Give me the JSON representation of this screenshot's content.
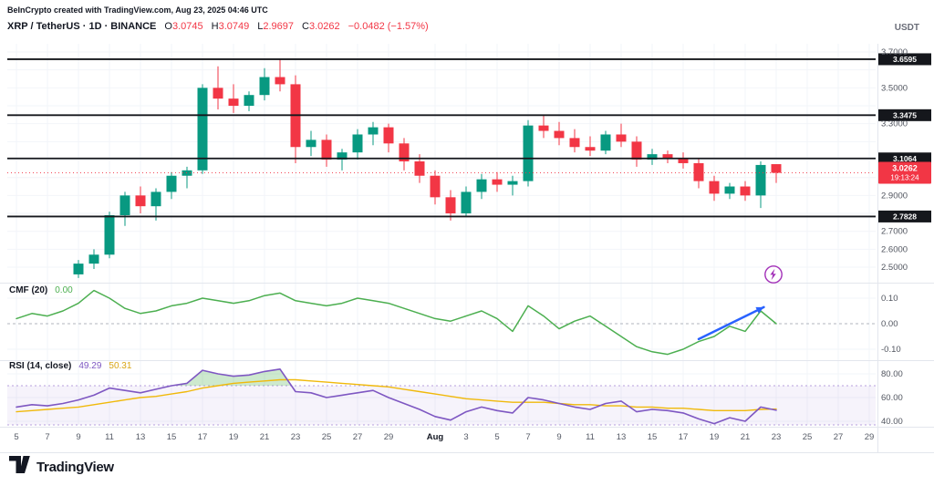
{
  "header": {
    "attribution": "BeInCrypto created with TradingView.com, Aug 23, 2025 04:46 UTC"
  },
  "legend": {
    "title": "XRP / TetherUS · 1D · BINANCE",
    "ohlc": [
      {
        "k": "O",
        "v": "3.0745"
      },
      {
        "k": "H",
        "v": "3.0749"
      },
      {
        "k": "L",
        "v": "2.9697"
      },
      {
        "k": "C",
        "v": "3.0262"
      }
    ],
    "change": "−0.0482 (−1.57%)",
    "quote_currency": "USDT"
  },
  "indicators": {
    "cmf": {
      "label": "CMF (20)",
      "value": "0.00"
    },
    "rsi": {
      "label": "RSI (14, close)",
      "value": "49.29",
      "ma_value": "50.31"
    }
  },
  "footer": {
    "logo_text": "TradingView"
  },
  "colors": {
    "up": "#089981",
    "down": "#F23645",
    "level_line": "#15171C",
    "last_price_badge": "#F23645",
    "arrow": "#2962FF",
    "boost": "#A22FB8"
  },
  "chart_data": [
    {
      "type": "candlestick",
      "title": "XRP / TetherUS · 1D · BINANCE",
      "interval": "1D",
      "exchange": "BINANCE",
      "ylim": [
        2.42,
        3.75
      ],
      "start_day": 4,
      "candles": [
        {
          "t": "Jul 9",
          "o": 2.46,
          "h": 2.54,
          "l": 2.44,
          "c": 2.52
        },
        {
          "t": "Jul 10",
          "o": 2.52,
          "h": 2.6,
          "l": 2.49,
          "c": 2.57
        },
        {
          "t": "Jul 11",
          "o": 2.57,
          "h": 2.81,
          "l": 2.55,
          "c": 2.79
        },
        {
          "t": "Jul 12",
          "o": 2.79,
          "h": 2.92,
          "l": 2.73,
          "c": 2.9
        },
        {
          "t": "Jul 13",
          "o": 2.9,
          "h": 2.95,
          "l": 2.8,
          "c": 2.84
        },
        {
          "t": "Jul 14",
          "o": 2.84,
          "h": 2.94,
          "l": 2.76,
          "c": 2.92
        },
        {
          "t": "Jul 15",
          "o": 2.92,
          "h": 3.03,
          "l": 2.88,
          "c": 3.01
        },
        {
          "t": "Jul 16",
          "o": 3.01,
          "h": 3.06,
          "l": 2.94,
          "c": 3.04
        },
        {
          "t": "Jul 17",
          "o": 3.04,
          "h": 3.52,
          "l": 3.02,
          "c": 3.5
        },
        {
          "t": "Jul 18",
          "o": 3.5,
          "h": 3.62,
          "l": 3.38,
          "c": 3.44
        },
        {
          "t": "Jul 19",
          "o": 3.44,
          "h": 3.52,
          "l": 3.36,
          "c": 3.4
        },
        {
          "t": "Jul 20",
          "o": 3.4,
          "h": 3.48,
          "l": 3.37,
          "c": 3.46
        },
        {
          "t": "Jul 21",
          "o": 3.46,
          "h": 3.61,
          "l": 3.43,
          "c": 3.56
        },
        {
          "t": "Jul 22",
          "o": 3.56,
          "h": 3.66,
          "l": 3.48,
          "c": 3.52
        },
        {
          "t": "Jul 23",
          "o": 3.52,
          "h": 3.57,
          "l": 3.08,
          "c": 3.17
        },
        {
          "t": "Jul 24",
          "o": 3.17,
          "h": 3.26,
          "l": 3.12,
          "c": 3.21
        },
        {
          "t": "Jul 25",
          "o": 3.21,
          "h": 3.24,
          "l": 3.06,
          "c": 3.1
        },
        {
          "t": "Jul 26",
          "o": 3.1,
          "h": 3.16,
          "l": 3.04,
          "c": 3.14
        },
        {
          "t": "Jul 27",
          "o": 3.14,
          "h": 3.27,
          "l": 3.1,
          "c": 3.24
        },
        {
          "t": "Jul 28",
          "o": 3.24,
          "h": 3.31,
          "l": 3.18,
          "c": 3.28
        },
        {
          "t": "Jul 29",
          "o": 3.28,
          "h": 3.3,
          "l": 3.14,
          "c": 3.19
        },
        {
          "t": "Jul 30",
          "o": 3.19,
          "h": 3.22,
          "l": 3.04,
          "c": 3.09
        },
        {
          "t": "Jul 31",
          "o": 3.09,
          "h": 3.13,
          "l": 2.97,
          "c": 3.01
        },
        {
          "t": "Aug 1",
          "o": 3.01,
          "h": 3.04,
          "l": 2.85,
          "c": 2.89
        },
        {
          "t": "Aug 2",
          "o": 2.89,
          "h": 2.93,
          "l": 2.76,
          "c": 2.8
        },
        {
          "t": "Aug 3",
          "o": 2.8,
          "h": 2.95,
          "l": 2.78,
          "c": 2.92
        },
        {
          "t": "Aug 4",
          "o": 2.92,
          "h": 3.02,
          "l": 2.88,
          "c": 2.99
        },
        {
          "t": "Aug 5",
          "o": 2.99,
          "h": 3.03,
          "l": 2.92,
          "c": 2.96
        },
        {
          "t": "Aug 6",
          "o": 2.96,
          "h": 3.01,
          "l": 2.9,
          "c": 2.98
        },
        {
          "t": "Aug 7",
          "o": 2.98,
          "h": 3.32,
          "l": 2.95,
          "c": 3.29
        },
        {
          "t": "Aug 8",
          "o": 3.29,
          "h": 3.35,
          "l": 3.22,
          "c": 3.26
        },
        {
          "t": "Aug 9",
          "o": 3.26,
          "h": 3.31,
          "l": 3.18,
          "c": 3.22
        },
        {
          "t": "Aug 10",
          "o": 3.22,
          "h": 3.27,
          "l": 3.14,
          "c": 3.17
        },
        {
          "t": "Aug 11",
          "o": 3.17,
          "h": 3.23,
          "l": 3.12,
          "c": 3.15
        },
        {
          "t": "Aug 12",
          "o": 3.15,
          "h": 3.26,
          "l": 3.13,
          "c": 3.24
        },
        {
          "t": "Aug 13",
          "o": 3.24,
          "h": 3.3,
          "l": 3.17,
          "c": 3.2
        },
        {
          "t": "Aug 14",
          "o": 3.2,
          "h": 3.23,
          "l": 3.06,
          "c": 3.1
        },
        {
          "t": "Aug 15",
          "o": 3.1,
          "h": 3.16,
          "l": 3.07,
          "c": 3.13
        },
        {
          "t": "Aug 16",
          "o": 3.13,
          "h": 3.15,
          "l": 3.08,
          "c": 3.11
        },
        {
          "t": "Aug 17",
          "o": 3.11,
          "h": 3.14,
          "l": 3.05,
          "c": 3.08
        },
        {
          "t": "Aug 18",
          "o": 3.08,
          "h": 3.11,
          "l": 2.94,
          "c": 2.98
        },
        {
          "t": "Aug 19",
          "o": 2.98,
          "h": 3.01,
          "l": 2.87,
          "c": 2.91
        },
        {
          "t": "Aug 20",
          "o": 2.91,
          "h": 2.97,
          "l": 2.88,
          "c": 2.95
        },
        {
          "t": "Aug 21",
          "o": 2.95,
          "h": 2.98,
          "l": 2.87,
          "c": 2.9
        },
        {
          "t": "Aug 22",
          "o": 2.9,
          "h": 3.09,
          "l": 2.83,
          "c": 3.07
        },
        {
          "t": "Aug 23",
          "o": 3.0745,
          "h": 3.0749,
          "l": 2.9697,
          "c": 3.0262
        }
      ],
      "levels": [
        {
          "label": "3.6595",
          "value": 3.6595
        },
        {
          "label": "3.3475",
          "value": 3.3475
        },
        {
          "label": "3.1064",
          "value": 3.1064
        },
        {
          "label": "2.7828",
          "value": 2.7828
        }
      ],
      "last_price": {
        "label": "3.0262",
        "value": 3.0262,
        "countdown": "19:13:24",
        "direction": "down"
      },
      "price_labels": [
        {
          "label": "3.7000",
          "value": 3.7
        },
        {
          "label": "3.5000",
          "value": 3.5
        },
        {
          "label": "3.3000",
          "value": 3.3
        },
        {
          "label": "2.9000",
          "value": 2.9
        },
        {
          "label": "2.7000",
          "value": 2.7
        },
        {
          "label": "2.6000",
          "value": 2.6
        },
        {
          "label": "2.5000",
          "value": 2.5
        }
      ],
      "grid_prices": [
        2.5,
        2.6,
        2.7,
        2.8,
        2.9,
        3.0,
        3.1,
        3.2,
        3.3,
        3.4,
        3.5,
        3.6,
        3.7
      ],
      "x_ticks": [
        {
          "label": "5",
          "day": 0
        },
        {
          "label": "7",
          "day": 2
        },
        {
          "label": "9",
          "day": 4
        },
        {
          "label": "11",
          "day": 6
        },
        {
          "label": "13",
          "day": 8
        },
        {
          "label": "15",
          "day": 10
        },
        {
          "label": "17",
          "day": 12
        },
        {
          "label": "19",
          "day": 14
        },
        {
          "label": "21",
          "day": 16
        },
        {
          "label": "23",
          "day": 18
        },
        {
          "label": "25",
          "day": 20
        },
        {
          "label": "27",
          "day": 22
        },
        {
          "label": "29",
          "day": 24
        },
        {
          "label": "Aug",
          "day": 27,
          "major": true
        },
        {
          "label": "3",
          "day": 29
        },
        {
          "label": "5",
          "day": 31
        },
        {
          "label": "7",
          "day": 33
        },
        {
          "label": "9",
          "day": 35
        },
        {
          "label": "11",
          "day": 37
        },
        {
          "label": "13",
          "day": 39
        },
        {
          "label": "15",
          "day": 41
        },
        {
          "label": "17",
          "day": 43
        },
        {
          "label": "19",
          "day": 45
        },
        {
          "label": "21",
          "day": 47
        },
        {
          "label": "23",
          "day": 49
        },
        {
          "label": "25",
          "day": 51
        },
        {
          "label": "27",
          "day": 53
        },
        {
          "label": "29",
          "day": 55
        }
      ]
    },
    {
      "type": "line",
      "title": "CMF (20)",
      "current": "0.00",
      "ylim": [
        -0.13,
        0.14
      ],
      "start_day": 0,
      "series": [
        {
          "name": "CMF",
          "color": "#4CAF50",
          "values": [
            0.02,
            0.04,
            0.03,
            0.05,
            0.08,
            0.13,
            0.1,
            0.06,
            0.04,
            0.05,
            0.07,
            0.08,
            0.1,
            0.09,
            0.08,
            0.09,
            0.11,
            0.12,
            0.09,
            0.08,
            0.07,
            0.08,
            0.1,
            0.09,
            0.08,
            0.06,
            0.04,
            0.02,
            0.01,
            0.03,
            0.05,
            0.02,
            -0.03,
            0.07,
            0.03,
            -0.02,
            0.01,
            0.03,
            -0.01,
            -0.05,
            -0.09,
            -0.11,
            -0.12,
            -0.1,
            -0.07,
            -0.05,
            -0.01,
            -0.03,
            0.05,
            0.0
          ]
        }
      ],
      "zero_line": 0,
      "axis_labels": [
        {
          "label": "0.10",
          "value": 0.1
        },
        {
          "label": "0.00",
          "value": 0.0
        },
        {
          "label": "-0.10",
          "value": -0.1
        }
      ],
      "annotations": [
        {
          "type": "arrow",
          "color": "#2962FF",
          "from": {
            "day": 44,
            "value": -0.06
          },
          "to": {
            "day": 48.2,
            "value": 0.065
          }
        }
      ]
    },
    {
      "type": "line",
      "title": "RSI (14, close)",
      "current": "49.29",
      "ma_current": "50.31",
      "ylim": [
        37,
        89
      ],
      "start_day": 0,
      "bands": {
        "upper": 70,
        "lower": 30
      },
      "series": [
        {
          "name": "RSI",
          "color": "#7E57C2",
          "values": [
            52,
            54,
            53,
            55,
            58,
            62,
            68,
            66,
            64,
            67,
            70,
            72,
            83,
            80,
            78,
            79,
            82,
            84,
            65,
            64,
            60,
            62,
            64,
            66,
            60,
            55,
            50,
            44,
            41,
            48,
            52,
            49,
            47,
            60,
            58,
            55,
            52,
            50,
            55,
            57,
            48,
            50,
            49,
            47,
            42,
            38,
            43,
            40,
            52,
            49.29
          ]
        },
        {
          "name": "RSI-based MA",
          "color": "#F0B90B",
          "values": [
            48,
            49,
            50,
            51,
            52,
            54,
            56,
            58,
            60,
            61,
            63,
            65,
            68,
            70,
            72,
            73,
            74,
            75,
            75,
            74,
            73,
            72,
            71,
            70,
            69,
            67,
            65,
            63,
            61,
            59,
            58,
            57,
            56,
            56,
            56,
            55,
            54,
            54,
            53,
            53,
            52,
            52,
            51,
            51,
            50,
            49,
            49,
            49,
            50,
            50.31
          ]
        }
      ],
      "axis_labels": [
        {
          "label": "80.00",
          "value": 80
        },
        {
          "label": "60.00",
          "value": 60
        },
        {
          "label": "40.00",
          "value": 40
        }
      ]
    }
  ]
}
